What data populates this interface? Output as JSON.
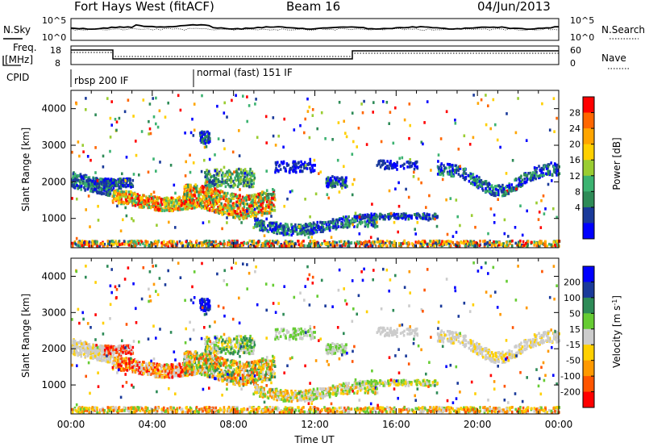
{
  "header": {
    "title": "Fort Hays West (fitACF)",
    "beam": "Beam 16",
    "date": "04/Jun/2013"
  },
  "params": {
    "nsky_label": "N.Sky",
    "nsky_ticks": [
      "10^5",
      "10^0"
    ],
    "nsearch_label": "N.Search",
    "freq_label_1": "Freq.",
    "freq_label_2": "[MHz]",
    "freq_ticks": [
      "18",
      "8"
    ],
    "nave_label": "Nave",
    "nave_ticks": [
      "60",
      "0"
    ],
    "cpid_label": "CPID",
    "cpid_segments": [
      "rbsp 200 IF",
      "normal (fast) 151 IF"
    ]
  },
  "chart_data": [
    {
      "type": "heatmap",
      "name": "power",
      "ylabel": "Slant Range [km]",
      "yticks": [
        "4000",
        "3000",
        "2000",
        "1000"
      ],
      "ylim": [
        200,
        4500
      ],
      "xlim_hours": [
        0,
        24
      ],
      "colorbar_label": "Power [dB]",
      "colorbar_ticks": [
        "28",
        "24",
        "20",
        "16",
        "12",
        "8",
        "4"
      ],
      "colorbar_colors": [
        "#ff0000",
        "#ff6600",
        "#ffa500",
        "#ffd000",
        "#9acd32",
        "#3cb371",
        "#2e8b57",
        "#1a3a9a",
        "#0000ff"
      ]
    },
    {
      "type": "heatmap",
      "name": "velocity",
      "ylabel": "Slant Range [km]",
      "yticks": [
        "4000",
        "3000",
        "2000",
        "1000"
      ],
      "ylim": [
        200,
        4500
      ],
      "xlim_hours": [
        0,
        24
      ],
      "xlabel": "Time UT",
      "xticks": [
        "00:00",
        "04:00",
        "08:00",
        "12:00",
        "16:00",
        "20:00",
        "00:00"
      ],
      "colorbar_label": "Velocity [m s",
      "colorbar_unit_sup": "-1",
      "colorbar_ticks": [
        "200",
        "100",
        "50",
        "15",
        "-15",
        "-50",
        "-100",
        "-200"
      ],
      "colorbar_colors": [
        "#0000ff",
        "#1a3a9a",
        "#2e8b57",
        "#66cc33",
        "#cccccc",
        "#ffd000",
        "#ff9900",
        "#ff5500",
        "#ff0000"
      ]
    }
  ]
}
